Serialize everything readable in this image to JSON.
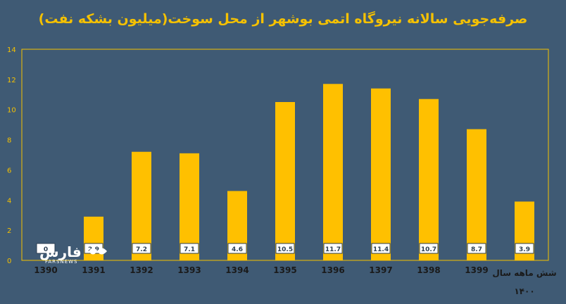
{
  "chart_data": {
    "type": "bar",
    "title": "صرفه‌جویی سالانه نیروگاه اتمی بوشهر از محل سوخت(میلیون بشکه نفت)",
    "categories": [
      "1390",
      "1391",
      "1392",
      "1393",
      "1394",
      "1395",
      "1396",
      "1397",
      "1398",
      "1399",
      "شش ماهه سال ۱۴۰۰"
    ],
    "values": [
      0,
      2.9,
      7.2,
      7.1,
      4.6,
      10.5,
      11.7,
      11.4,
      10.7,
      8.7,
      3.9
    ],
    "data_labels": [
      "0",
      "2.9",
      "7.2",
      "7.1",
      "4.6",
      "10.5",
      "11.7",
      "11.4",
      "10.7",
      "8.7",
      "3.9"
    ],
    "ylim": [
      0,
      14
    ],
    "yticks": [
      "0",
      "2",
      "4",
      "6",
      "8",
      "10",
      "12",
      "14"
    ],
    "xlabel": "",
    "ylabel": "",
    "grid": false,
    "colors": {
      "background": "#3f5a74",
      "bar": "#ffc000",
      "text": "#f5c100"
    }
  },
  "watermark": {
    "text": "فارس",
    "sub": "FARSNEWS"
  }
}
